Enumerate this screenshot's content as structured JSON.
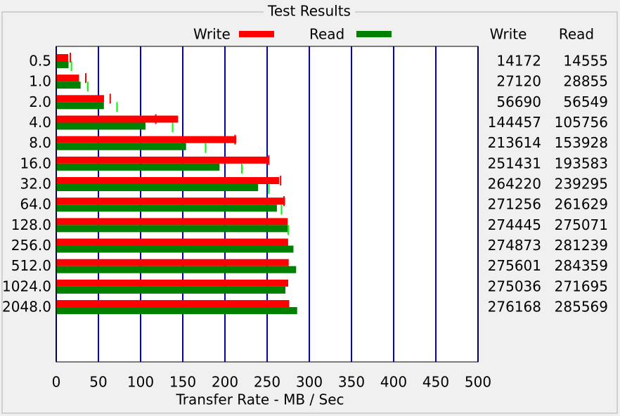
{
  "chart_data": {
    "type": "bar",
    "orientation": "horizontal",
    "title": "Test Results",
    "categories": [
      "0.5",
      "1.0",
      "2.0",
      "4.0",
      "8.0",
      "16.0",
      "32.0",
      "64.0",
      "128.0",
      "256.0",
      "512.0",
      "1024.0",
      "2048.0"
    ],
    "series": [
      {
        "name": "Write",
        "color": "#ff0000",
        "peak_color": "#ff0000",
        "values": [
          14.2,
          27.1,
          56.7,
          144.5,
          213.6,
          251.4,
          264.2,
          271.3,
          274.4,
          274.9,
          275.6,
          275.0,
          276.2
        ],
        "peaks": [
          16.7,
          35,
          64,
          118,
          212,
          252,
          266,
          270,
          null,
          null,
          null,
          null,
          null
        ]
      },
      {
        "name": "Read",
        "color": "#008000",
        "peak_color": "#00ff00",
        "values": [
          14.6,
          28.9,
          56.5,
          105.8,
          153.9,
          193.6,
          239.3,
          261.6,
          275.1,
          281.2,
          284.4,
          271.7,
          285.6
        ],
        "peaks": [
          18,
          37.5,
          72,
          138,
          177,
          220,
          252,
          267,
          275,
          null,
          null,
          null,
          null
        ]
      }
    ],
    "x_label": "Transfer Rate - MB / Sec",
    "xlim": [
      0,
      500
    ],
    "xticks": [
      0,
      50,
      100,
      150,
      200,
      250,
      300,
      350,
      400,
      450,
      500
    ],
    "grid": true,
    "grid_color": "#0000cc"
  },
  "table": {
    "headers": [
      "Write",
      "Read"
    ],
    "rows": [
      [
        14172,
        14555
      ],
      [
        27120,
        28855
      ],
      [
        56690,
        56549
      ],
      [
        144457,
        105756
      ],
      [
        213614,
        153928
      ],
      [
        251431,
        193583
      ],
      [
        264220,
        239295
      ],
      [
        271256,
        261629
      ],
      [
        274445,
        275071
      ],
      [
        274873,
        281239
      ],
      [
        275601,
        284359
      ],
      [
        275036,
        271695
      ],
      [
        276168,
        285569
      ]
    ]
  }
}
